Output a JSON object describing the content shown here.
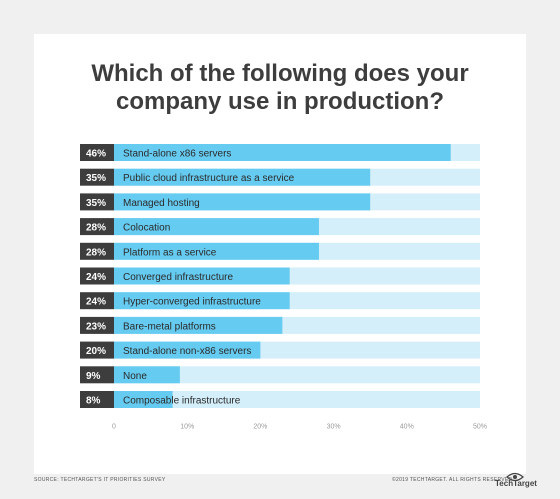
{
  "title_line1": "Which of the following does your",
  "title_line2": "company use in production?",
  "chart_data": {
    "type": "bar",
    "orientation": "horizontal",
    "categories": [
      "Stand-alone x86 servers",
      "Public cloud infrastructure as a service",
      "Managed hosting",
      "Colocation",
      "Platform as a service",
      "Converged infrastructure",
      "Hyper-converged infrastructure",
      "Bare-metal platforms",
      "Stand-alone non-x86 servers",
      "None",
      "Composable infrastructure"
    ],
    "values": [
      46,
      35,
      35,
      28,
      28,
      24,
      24,
      23,
      20,
      9,
      8
    ],
    "value_labels": [
      "46%",
      "35%",
      "35%",
      "28%",
      "28%",
      "24%",
      "24%",
      "23%",
      "20%",
      "9%",
      "8%"
    ],
    "xlim": [
      0,
      50
    ],
    "x_ticks": [
      "0",
      "10%",
      "20%",
      "30%",
      "40%",
      "50%"
    ],
    "grid": false,
    "colors": {
      "bar": "#66cbf1",
      "track": "#d4eefa",
      "badge": "#3d3d3d",
      "badge_text": "#ffffff",
      "label_text": "#2a2a2a"
    }
  },
  "footer": {
    "source": "SOURCE: TECHTARGET'S IT PRIORITIES SURVEY",
    "copyright": "©2019 TECHTARGET. ALL RIGHTS RESERVED",
    "logo_text": "TechTarget",
    "logo_icon": "eye-logo-icon"
  }
}
